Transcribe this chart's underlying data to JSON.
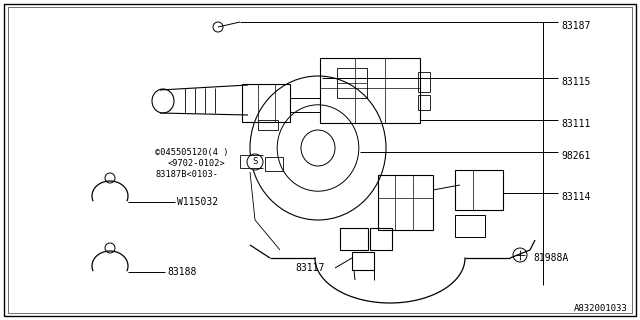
{
  "bg_color": "#ffffff",
  "diagram_id": "A832001033",
  "annotations": {
    "screw_label": "©045505120(4 )",
    "screw_sub1": "<9702-0102>",
    "screw_sub2": "83187B<0103-"
  },
  "line_color": "#000000",
  "font_size": 7.0,
  "small_font_size": 6.2,
  "diagram_id_font_size": 6.5
}
